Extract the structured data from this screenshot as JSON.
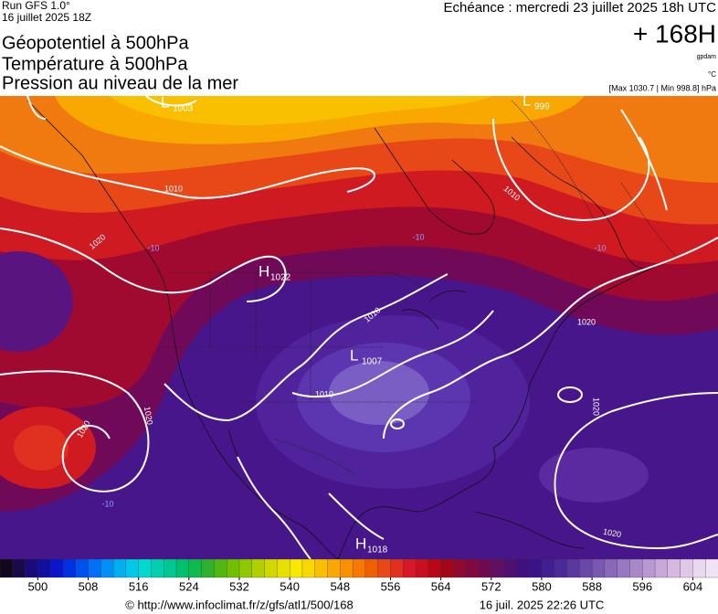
{
  "header": {
    "run": "Run GFS 1.0°",
    "run_date": "16 juillet 2025 18Z",
    "forecast": "Echéance : mercredi 23 juillet 2025 18h UTC",
    "titles": [
      "Géopotentiel à 500hPa",
      "Température à 500hPa",
      "Pression au niveau de la mer"
    ],
    "lead": "+ 168H",
    "unit_geo": "gpdam",
    "unit_temp": "°C",
    "pressure_range": "[Max 1030.7 | Min 998.8] hPa"
  },
  "map": {
    "centers": [
      {
        "letter": "H",
        "value": "1022"
      },
      {
        "letter": "L",
        "value": "1007"
      },
      {
        "letter": "H",
        "value": "1018"
      },
      {
        "letter": "L",
        "value": "1003"
      },
      {
        "letter": "L",
        "value": "999"
      }
    ],
    "isobar_labels": [
      "1010",
      "1010",
      "1020",
      "1010",
      "1010",
      "1020",
      "1020",
      "1020",
      "1020",
      "1020"
    ],
    "temperature_labels": [
      "-10",
      "-10",
      "-10",
      "-10"
    ]
  },
  "colorbar": {
    "range": [
      494,
      608
    ],
    "ticks": [
      500,
      508,
      516,
      524,
      532,
      540,
      548,
      556,
      564,
      572,
      580,
      588,
      596,
      604
    ],
    "colors": [
      "#10081a",
      "#1a0a4a",
      "#1a0a7a",
      "#1010a0",
      "#0818c8",
      "#0030e0",
      "#0050f0",
      "#0070f8",
      "#0090f8",
      "#00b0f0",
      "#00c8e8",
      "#00d8d0",
      "#00d0b0",
      "#00c890",
      "#00c070",
      "#10b850",
      "#30b030",
      "#50b810",
      "#70c000",
      "#90c800",
      "#b0d000",
      "#d0d800",
      "#e8e000",
      "#f8e800",
      "#f8d800",
      "#f8c000",
      "#f8a800",
      "#f89000",
      "#f87800",
      "#f06000",
      "#e84818",
      "#e03020",
      "#d81828",
      "#c81020",
      "#b80818",
      "#a00818",
      "#900a30",
      "#800a40",
      "#700a50",
      "#601060",
      "#501070",
      "#401080",
      "#381488",
      "#402090",
      "#4a2a98",
      "#5a38a0",
      "#6848a8",
      "#7858b0",
      "#8868b8",
      "#9878c0",
      "#a888c8",
      "#b898d0",
      "#c8a8d8",
      "#d8b8e0",
      "#e0c8e8",
      "#e8d8f0",
      "#f0e4f4"
    ]
  },
  "footer": {
    "source": "© http://www.infoclimat.fr/z/gfs/atl1/500/168",
    "generated": "16 juil. 2025 22:26 UTC"
  }
}
